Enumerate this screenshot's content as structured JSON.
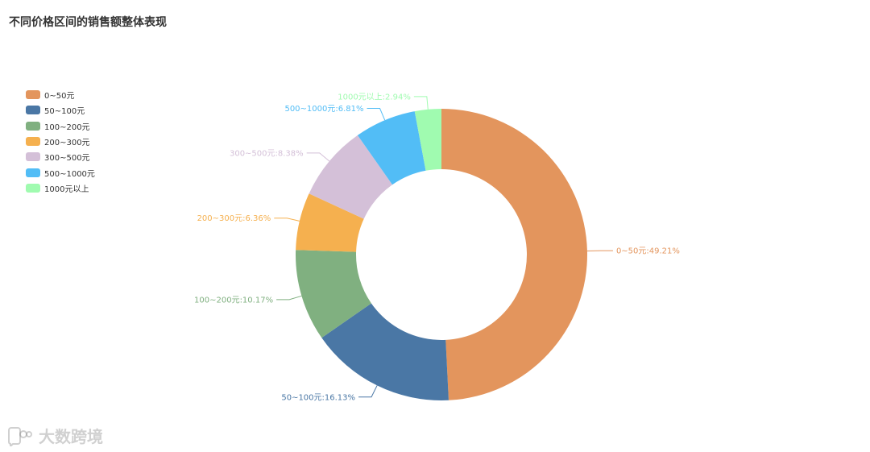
{
  "chart_data": {
    "type": "pie",
    "variant": "donut",
    "title": "不同价格区间的销售额整体表现",
    "legend_position": "left",
    "categories": [
      "0~50元",
      "50~100元",
      "100~200元",
      "200~300元",
      "300~500元",
      "500~1000元",
      "1000元以上"
    ],
    "values": [
      49.21,
      16.13,
      10.17,
      6.36,
      8.38,
      6.81,
      2.94
    ],
    "labels": [
      "0~50元:49.21%",
      "50~100元:16.13%",
      "100~200元:10.17%",
      "200~300元:6.36%",
      "300~500元:8.38%",
      "500~1000元:6.81%",
      "1000元以上:2.94%"
    ],
    "colors": [
      "#e3955d",
      "#4a77a5",
      "#80b080",
      "#f5b04f",
      "#d4c0d8",
      "#52bdf6",
      "#a0fbb0"
    ]
  },
  "watermark": {
    "text": "大数跨境",
    "logo_icon": "chat-bubble-logo-icon"
  }
}
